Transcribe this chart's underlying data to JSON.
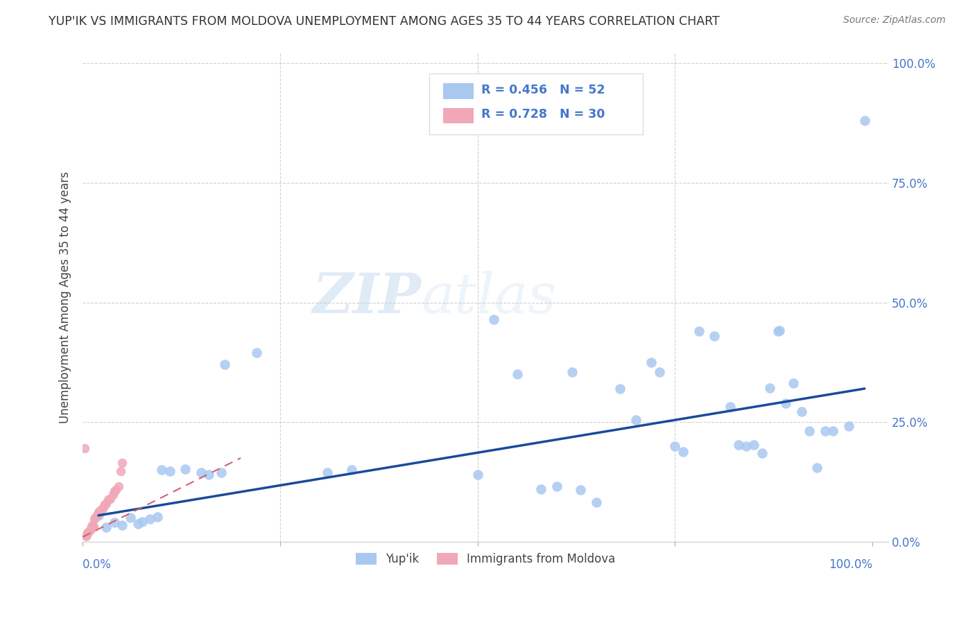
{
  "title": "YUP'IK VS IMMIGRANTS FROM MOLDOVA UNEMPLOYMENT AMONG AGES 35 TO 44 YEARS CORRELATION CHART",
  "source": "Source: ZipAtlas.com",
  "ylabel": "Unemployment Among Ages 35 to 44 years",
  "watermark_zip": "ZIP",
  "watermark_atlas": "atlas",
  "blue_r": 0.456,
  "blue_n": 52,
  "pink_r": 0.728,
  "pink_n": 30,
  "blue_color": "#a8c8f0",
  "pink_color": "#f0a8b8",
  "trend_blue": "#1a4a9a",
  "trend_pink": "#d06070",
  "blue_scatter": [
    [
      0.02,
      0.055
    ],
    [
      0.03,
      0.03
    ],
    [
      0.04,
      0.04
    ],
    [
      0.05,
      0.035
    ],
    [
      0.06,
      0.05
    ],
    [
      0.07,
      0.038
    ],
    [
      0.075,
      0.042
    ],
    [
      0.085,
      0.048
    ],
    [
      0.095,
      0.052
    ],
    [
      0.1,
      0.15
    ],
    [
      0.11,
      0.148
    ],
    [
      0.13,
      0.152
    ],
    [
      0.15,
      0.145
    ],
    [
      0.16,
      0.14
    ],
    [
      0.175,
      0.145
    ],
    [
      0.18,
      0.37
    ],
    [
      0.22,
      0.395
    ],
    [
      0.31,
      0.145
    ],
    [
      0.34,
      0.15
    ],
    [
      0.5,
      0.14
    ],
    [
      0.52,
      0.465
    ],
    [
      0.55,
      0.35
    ],
    [
      0.58,
      0.11
    ],
    [
      0.6,
      0.115
    ],
    [
      0.62,
      0.355
    ],
    [
      0.63,
      0.108
    ],
    [
      0.65,
      0.082
    ],
    [
      0.68,
      0.32
    ],
    [
      0.7,
      0.255
    ],
    [
      0.72,
      0.375
    ],
    [
      0.73,
      0.355
    ],
    [
      0.75,
      0.2
    ],
    [
      0.76,
      0.188
    ],
    [
      0.78,
      0.44
    ],
    [
      0.8,
      0.43
    ],
    [
      0.82,
      0.282
    ],
    [
      0.83,
      0.202
    ],
    [
      0.84,
      0.2
    ],
    [
      0.85,
      0.202
    ],
    [
      0.86,
      0.185
    ],
    [
      0.87,
      0.322
    ],
    [
      0.88,
      0.44
    ],
    [
      0.882,
      0.442
    ],
    [
      0.89,
      0.29
    ],
    [
      0.9,
      0.332
    ],
    [
      0.91,
      0.272
    ],
    [
      0.92,
      0.232
    ],
    [
      0.93,
      0.155
    ],
    [
      0.94,
      0.232
    ],
    [
      0.95,
      0.232
    ],
    [
      0.97,
      0.242
    ],
    [
      0.99,
      0.88
    ]
  ],
  "pink_scatter": [
    [
      0.002,
      0.195
    ],
    [
      0.004,
      0.012
    ],
    [
      0.005,
      0.014
    ],
    [
      0.006,
      0.018
    ],
    [
      0.007,
      0.02
    ],
    [
      0.008,
      0.022
    ],
    [
      0.009,
      0.025
    ],
    [
      0.01,
      0.028
    ],
    [
      0.011,
      0.032
    ],
    [
      0.012,
      0.035
    ],
    [
      0.013,
      0.03
    ],
    [
      0.014,
      0.032
    ],
    [
      0.015,
      0.048
    ],
    [
      0.016,
      0.05
    ],
    [
      0.018,
      0.055
    ],
    [
      0.019,
      0.058
    ],
    [
      0.02,
      0.062
    ],
    [
      0.022,
      0.065
    ],
    [
      0.025,
      0.07
    ],
    [
      0.026,
      0.072
    ],
    [
      0.028,
      0.078
    ],
    [
      0.03,
      0.08
    ],
    [
      0.032,
      0.088
    ],
    [
      0.035,
      0.09
    ],
    [
      0.038,
      0.098
    ],
    [
      0.04,
      0.105
    ],
    [
      0.042,
      0.108
    ],
    [
      0.045,
      0.115
    ],
    [
      0.048,
      0.148
    ],
    [
      0.05,
      0.165
    ]
  ],
  "blue_trend_x": [
    0.02,
    0.99
  ],
  "blue_trend_y": [
    0.055,
    0.32
  ],
  "pink_trend_x": [
    0.0,
    0.2
  ],
  "pink_trend_y": [
    0.01,
    0.175
  ],
  "xlim": [
    0.0,
    1.02
  ],
  "ylim": [
    0.0,
    1.02
  ],
  "xaxis_ticks": [
    0.0,
    0.25,
    0.5,
    0.75,
    1.0
  ],
  "yaxis_ticks": [
    0.0,
    0.25,
    0.5,
    0.75,
    1.0
  ],
  "yaxis_labels_right": [
    "0.0%",
    "25.0%",
    "50.0%",
    "75.0%",
    "100.0%"
  ],
  "legend_labels": [
    "Yup'ik",
    "Immigrants from Moldova"
  ],
  "background_color": "#ffffff",
  "grid_color": "#cccccc",
  "axis_color": "#4477cc",
  "title_color": "#333333",
  "source_color": "#777777"
}
